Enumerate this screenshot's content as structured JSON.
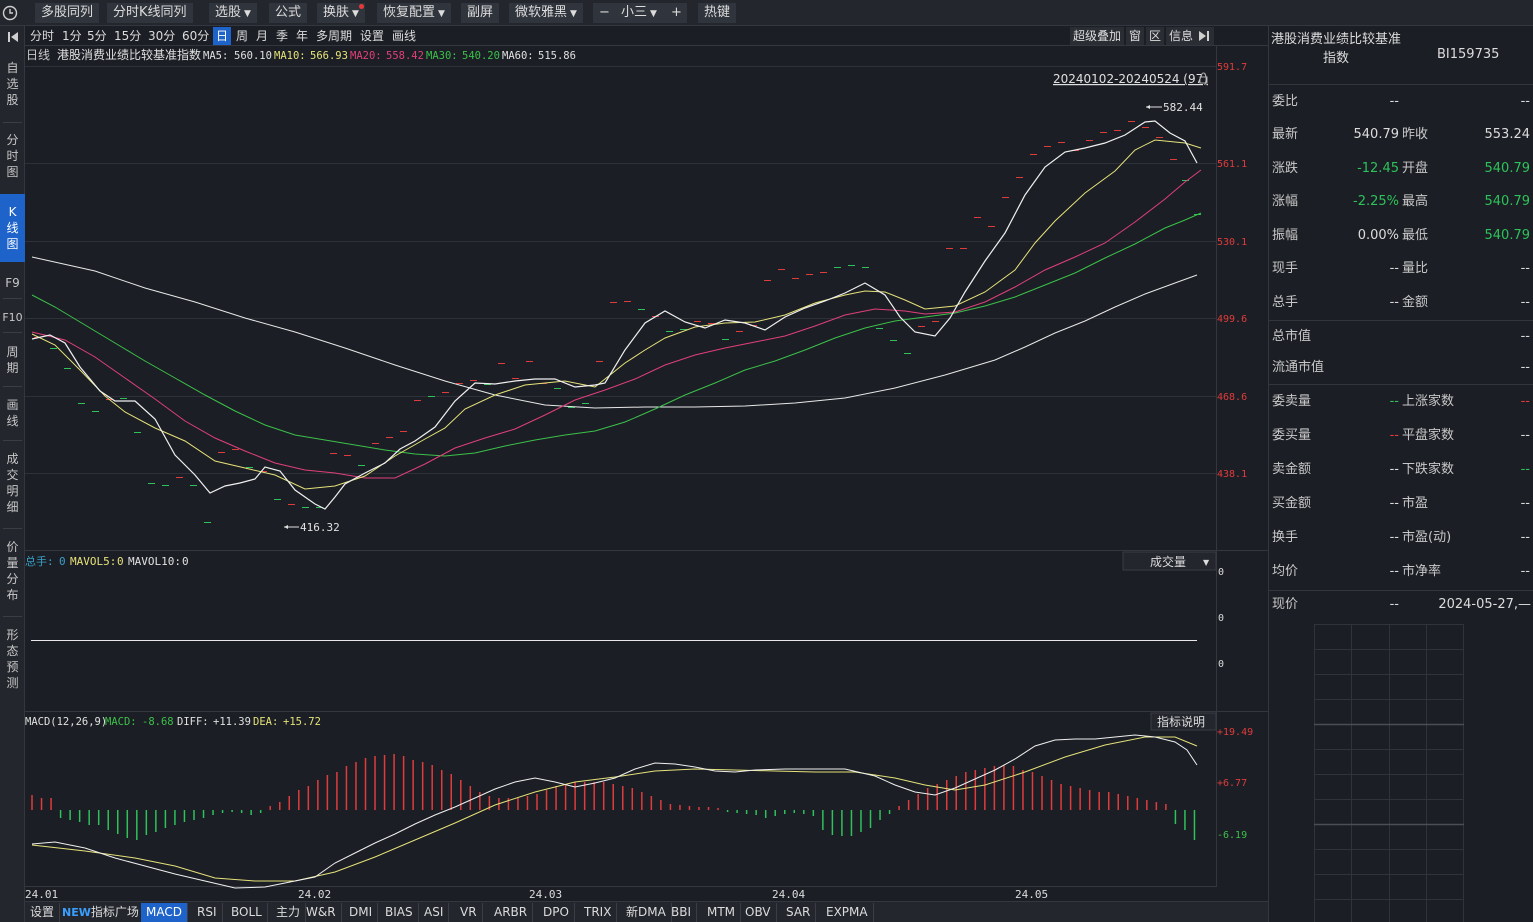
{
  "toolbar": {
    "buttons": [
      {
        "label": "多股同列"
      },
      {
        "label": "分时K线同列"
      },
      {
        "label": "选股"
      },
      {
        "label": "公式"
      },
      {
        "label": "换肤"
      },
      {
        "label": "恢复配置"
      },
      {
        "label": "副屏"
      },
      {
        "label": "微软雅黑"
      },
      {
        "label": "小三"
      },
      {
        "label": "热键"
      }
    ],
    "minus": "−",
    "plus": "+"
  },
  "sidebar": {
    "items": [
      {
        "label": "自选股"
      },
      {
        "label": "分时图"
      },
      {
        "label": "K线图"
      },
      {
        "label": "F9"
      },
      {
        "label": "F10"
      },
      {
        "label": "周期"
      },
      {
        "label": "画线"
      },
      {
        "label": "成交明细"
      },
      {
        "label": "价量分布"
      },
      {
        "label": "形态预测"
      }
    ]
  },
  "periods": [
    "分时",
    "1分",
    "5分",
    "15分",
    "30分",
    "60分",
    "日",
    "周",
    "月",
    "季",
    "年",
    "多周期",
    "设置",
    "画线"
  ],
  "chart_tools": [
    "超级叠加",
    "窗",
    "区",
    "信息"
  ],
  "main_chart": {
    "period_label": "日线",
    "title": "港股消费业绩比较基准指数",
    "ma": [
      {
        "name": "MA5:",
        "value": "560.10",
        "color": "#e0e0e0"
      },
      {
        "name": "MA10:",
        "value": "566.93",
        "color": "#e6e27a"
      },
      {
        "name": "MA20:",
        "value": "558.42",
        "color": "#e0407a"
      },
      {
        "name": "MA30:",
        "value": "540.20",
        "color": "#3cc04a"
      },
      {
        "name": "MA60:",
        "value": "515.86",
        "color": "#e0e0e0"
      }
    ],
    "range": "20240102-20240524 (97)",
    "high_marker": "582.44",
    "low_marker": "416.32",
    "y_ticks": [
      "591.7",
      "561.1",
      "530.1",
      "499.6",
      "468.6",
      "438.1"
    ]
  },
  "volume_panel": {
    "label": "总手:",
    "v1": "0",
    "mavol5": "MAVOL5:",
    "v2": "0",
    "mavol10": "MAVOL10:",
    "v3": "0",
    "selector": "成交量",
    "y_ticks": [
      "0",
      "0",
      "0"
    ]
  },
  "macd_panel": {
    "name": "MACD(12,26,9)",
    "macd_label": "MACD:",
    "macd": "-8.68",
    "diff_label": "DIFF:",
    "diff": "+11.39",
    "dea_label": "DEA:",
    "dea": "+15.72",
    "explain": "指标说明",
    "y_ticks": [
      "+19.49",
      "+6.77",
      "-6.19"
    ]
  },
  "x_axis": [
    "24.01",
    "24.02",
    "24.03",
    "24.04",
    "24.05"
  ],
  "chart_data": {
    "type": "line",
    "title": "港股消费业绩比较基准指数",
    "x": [
      "24.01",
      "24.02",
      "24.03",
      "24.04",
      "24.05"
    ],
    "ylim": [
      416.32,
      591.7
    ],
    "series": [
      {
        "name": "MA5",
        "last": 560.1
      },
      {
        "name": "MA10",
        "last": 566.93
      },
      {
        "name": "MA20",
        "last": 558.42
      },
      {
        "name": "MA30",
        "last": 540.2
      },
      {
        "name": "MA60",
        "last": 515.86
      }
    ],
    "high": 582.44,
    "low": 416.32,
    "macd": {
      "macd": -8.68,
      "diff": 11.39,
      "dea": 15.72
    }
  },
  "bottom_tabs": [
    "设置",
    "指标广场",
    "MACD",
    "RSI",
    "BOLL",
    "主力",
    "W&R",
    "DMI",
    "BIAS",
    "ASI",
    "VR",
    "ARBR",
    "DPO",
    "TRIX",
    "新DMA",
    "BBI",
    "MTM",
    "OBV",
    "SAR",
    "EXPMA"
  ],
  "new_tag": "NEW",
  "right_panel": {
    "name": "港股消费业绩比较基准",
    "type": "指数",
    "code": "BI159735",
    "rows": [
      {
        "l1": "委比",
        "v1": "--",
        "l2": "",
        "v2": "--"
      },
      {
        "l1": "最新",
        "v1": "540.79",
        "l2": "昨收",
        "v2": "553.24"
      },
      {
        "l1": "涨跌",
        "v1": "-12.45",
        "l2": "开盘",
        "v2": "540.79"
      },
      {
        "l1": "涨幅",
        "v1": "-2.25%",
        "l2": "最高",
        "v2": "540.79"
      },
      {
        "l1": "振幅",
        "v1": "0.00%",
        "l2": "最低",
        "v2": "540.79"
      },
      {
        "l1": "现手",
        "v1": "--",
        "l2": "量比",
        "v2": "--"
      },
      {
        "l1": "总手",
        "v1": "--",
        "l2": "金额",
        "v2": "--"
      }
    ],
    "rows2": [
      {
        "l": "总市值",
        "v": "--"
      },
      {
        "l": "流通市值",
        "v": "--"
      }
    ],
    "rows3": [
      {
        "l1": "委卖量",
        "v1": "--",
        "l2": "上涨家数",
        "v2": "--"
      },
      {
        "l1": "委买量",
        "v1": "--",
        "l2": "平盘家数",
        "v2": "--"
      },
      {
        "l1": "卖金额",
        "v1": "--",
        "l2": "下跌家数",
        "v2": "--"
      },
      {
        "l1": "买金额",
        "v1": "--",
        "l2": "市盈",
        "v2": "--"
      },
      {
        "l1": "换手",
        "v1": "--",
        "l2": "市盈(动)",
        "v2": "--"
      },
      {
        "l1": "均价",
        "v1": "--",
        "l2": "市净率",
        "v2": "--"
      }
    ],
    "price_label": "现价",
    "price_val": "--",
    "date": "2024-05-27,—"
  },
  "colors": {
    "up": "#e03c3c",
    "down": "#2ec25a",
    "accent": "#1e63c9"
  }
}
